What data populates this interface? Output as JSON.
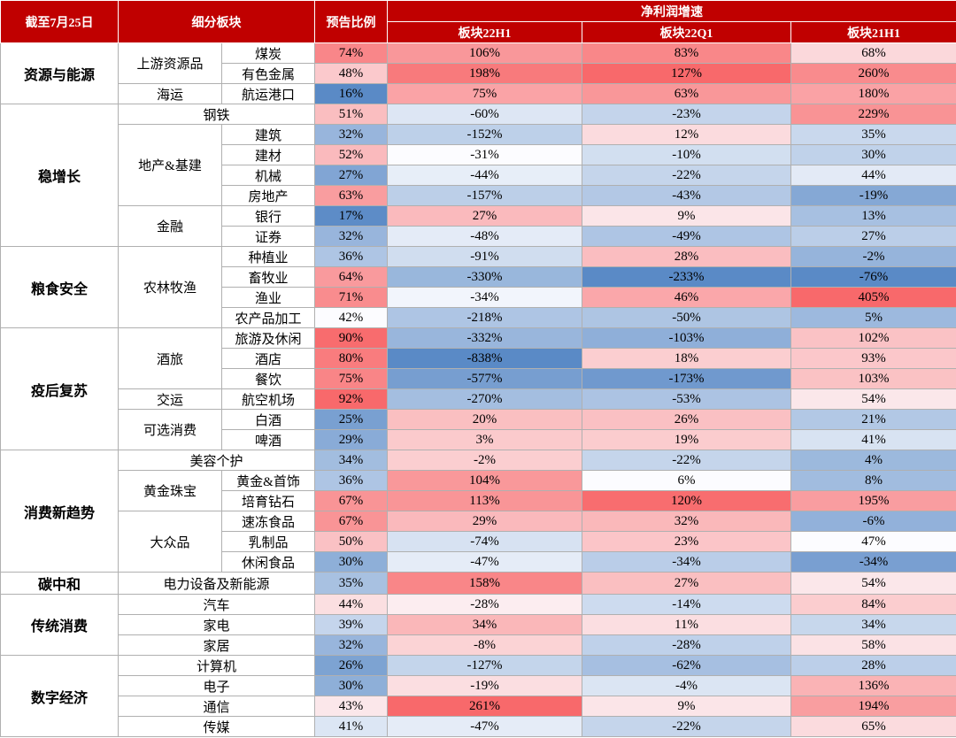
{
  "table": {
    "header": [
      "截至7月25日",
      "细分板块",
      "预告比例"
    ],
    "group_header": "净利润增速",
    "growth_columns": [
      "板块22H1",
      "板块22Q1",
      "板块21H1"
    ],
    "groups": [
      {
        "name": "资源与能源",
        "subgroups": [
          {
            "name": "上游资源品",
            "rows": [
              {
                "sector": "煤炭",
                "values": [
                  74,
                  106,
                  83,
                  68
                ],
                "value_labels": [
                  "74%",
                  "106%",
                  "83%",
                  "68%"
                ]
              },
              {
                "sector": "有色金属",
                "values": [
                  48,
                  198,
                  127,
                  260
                ],
                "value_labels": [
                  "48%",
                  "198%",
                  "127%",
                  "260%"
                ]
              }
            ]
          },
          {
            "name": "海运",
            "rows": [
              {
                "sector": "航运港口",
                "values": [
                  16,
                  75,
                  63,
                  180
                ],
                "value_labels": [
                  "16%",
                  "75%",
                  "63%",
                  "180%"
                ]
              }
            ]
          }
        ]
      },
      {
        "name": "稳增长",
        "subgroups": [
          {
            "name": "钢铁",
            "rows": [
              {
                "values": [
                  51,
                  -60,
                  -23,
                  229
                ],
                "value_labels": [
                  "51%",
                  "-60%",
                  "-23%",
                  "229%"
                ]
              }
            ]
          },
          {
            "name": "地产&基建",
            "rows": [
              {
                "sector": "建筑",
                "values": [
                  32,
                  -152,
                  12,
                  35
                ],
                "value_labels": [
                  "32%",
                  "-152%",
                  "12%",
                  "35%"
                ]
              },
              {
                "sector": "建材",
                "values": [
                  52,
                  -31,
                  -10,
                  30
                ],
                "value_labels": [
                  "52%",
                  "-31%",
                  "-10%",
                  "30%"
                ]
              },
              {
                "sector": "机械",
                "values": [
                  27,
                  -44,
                  -22,
                  44
                ],
                "value_labels": [
                  "27%",
                  "-44%",
                  "-22%",
                  "44%"
                ]
              },
              {
                "sector": "房地产",
                "values": [
                  63,
                  -157,
                  -43,
                  -19
                ],
                "value_labels": [
                  "63%",
                  "-157%",
                  "-43%",
                  "-19%"
                ]
              }
            ]
          },
          {
            "name": "金融",
            "rows": [
              {
                "sector": "银行",
                "values": [
                  17,
                  27,
                  9,
                  13
                ],
                "value_labels": [
                  "17%",
                  "27%",
                  "9%",
                  "13%"
                ]
              },
              {
                "sector": "证券",
                "values": [
                  32,
                  -48,
                  -49,
                  27
                ],
                "value_labels": [
                  "32%",
                  "-48%",
                  "-49%",
                  "27%"
                ]
              }
            ]
          }
        ]
      },
      {
        "name": "粮食安全",
        "subgroups": [
          {
            "name": "农林牧渔",
            "rows": [
              {
                "sector": "种植业",
                "values": [
                  36,
                  -91,
                  28,
                  -2
                ],
                "value_labels": [
                  "36%",
                  "-91%",
                  "28%",
                  "-2%"
                ]
              },
              {
                "sector": "畜牧业",
                "values": [
                  64,
                  -330,
                  -233,
                  -76
                ],
                "value_labels": [
                  "64%",
                  "-330%",
                  "-233%",
                  "-76%"
                ]
              },
              {
                "sector": "渔业",
                "values": [
                  71,
                  -34,
                  46,
                  405
                ],
                "value_labels": [
                  "71%",
                  "-34%",
                  "46%",
                  "405%"
                ]
              },
              {
                "sector": "农产品加工",
                "values": [
                  42,
                  -218,
                  -50,
                  5
                ],
                "value_labels": [
                  "42%",
                  "-218%",
                  "-50%",
                  "5%"
                ]
              }
            ]
          }
        ]
      },
      {
        "name": "疫后复苏",
        "subgroups": [
          {
            "name": "酒旅",
            "rows": [
              {
                "sector": "旅游及休闲",
                "values": [
                  90,
                  -332,
                  -103,
                  102
                ],
                "value_labels": [
                  "90%",
                  "-332%",
                  "-103%",
                  "102%"
                ]
              },
              {
                "sector": "酒店",
                "values": [
                  80,
                  -838,
                  18,
                  93
                ],
                "value_labels": [
                  "80%",
                  "-838%",
                  "18%",
                  "93%"
                ]
              },
              {
                "sector": "餐饮",
                "values": [
                  75,
                  -577,
                  -173,
                  103
                ],
                "value_labels": [
                  "75%",
                  "-577%",
                  "-173%",
                  "103%"
                ]
              }
            ]
          },
          {
            "name": "交运",
            "rows": [
              {
                "sector": "航空机场",
                "values": [
                  92,
                  -270,
                  -53,
                  54
                ],
                "value_labels": [
                  "92%",
                  "-270%",
                  "-53%",
                  "54%"
                ]
              }
            ]
          },
          {
            "name": "可选消费",
            "rows": [
              {
                "sector": "白酒",
                "values": [
                  25,
                  20,
                  26,
                  21
                ],
                "value_labels": [
                  "25%",
                  "20%",
                  "26%",
                  "21%"
                ]
              },
              {
                "sector": "啤酒",
                "values": [
                  29,
                  3,
                  19,
                  41
                ],
                "value_labels": [
                  "29%",
                  "3%",
                  "19%",
                  "41%"
                ]
              }
            ]
          }
        ]
      },
      {
        "name": "消费新趋势",
        "subgroups": [
          {
            "name": "美容个护",
            "rows": [
              {
                "values": [
                  34,
                  -2,
                  -22,
                  4
                ],
                "value_labels": [
                  "34%",
                  "-2%",
                  "-22%",
                  "4%"
                ]
              }
            ]
          },
          {
            "name": "黄金珠宝",
            "rows": [
              {
                "sector": "黄金&首饰",
                "values": [
                  36,
                  104,
                  6,
                  8
                ],
                "value_labels": [
                  "36%",
                  "104%",
                  "6%",
                  "8%"
                ]
              },
              {
                "sector": "培育钻石",
                "values": [
                  67,
                  113,
                  120,
                  195
                ],
                "value_labels": [
                  "67%",
                  "113%",
                  "120%",
                  "195%"
                ]
              }
            ]
          },
          {
            "name": "大众品",
            "rows": [
              {
                "sector": "速冻食品",
                "values": [
                  67,
                  29,
                  32,
                  -6
                ],
                "value_labels": [
                  "67%",
                  "29%",
                  "32%",
                  "-6%"
                ]
              },
              {
                "sector": "乳制品",
                "values": [
                  50,
                  -74,
                  23,
                  47
                ],
                "value_labels": [
                  "50%",
                  "-74%",
                  "23%",
                  "47%"
                ]
              },
              {
                "sector": "休闲食品",
                "values": [
                  30,
                  -47,
                  -34,
                  -34
                ],
                "value_labels": [
                  "30%",
                  "-47%",
                  "-34%",
                  "-34%"
                ]
              }
            ]
          }
        ]
      },
      {
        "name": "碳中和",
        "subgroups": [
          {
            "name": "电力设备及新能源",
            "rows": [
              {
                "values": [
                  35,
                  158,
                  27,
                  54
                ],
                "value_labels": [
                  "35%",
                  "158%",
                  "27%",
                  "54%"
                ]
              }
            ]
          }
        ]
      },
      {
        "name": "传统消费",
        "subgroups": [
          {
            "name": "汽车",
            "rows": [
              {
                "values": [
                  44,
                  -28,
                  -14,
                  84
                ],
                "value_labels": [
                  "44%",
                  "-28%",
                  "-14%",
                  "84%"
                ]
              }
            ]
          },
          {
            "name": "家电",
            "rows": [
              {
                "values": [
                  39,
                  34,
                  11,
                  34
                ],
                "value_labels": [
                  "39%",
                  "34%",
                  "11%",
                  "34%"
                ]
              }
            ]
          },
          {
            "name": "家居",
            "rows": [
              {
                "values": [
                  32,
                  -8,
                  -28,
                  58
                ],
                "value_labels": [
                  "32%",
                  "-8%",
                  "-28%",
                  "58%"
                ]
              }
            ]
          }
        ]
      },
      {
        "name": "数字经济",
        "subgroups": [
          {
            "name": "计算机",
            "rows": [
              {
                "values": [
                  26,
                  -127,
                  -62,
                  28
                ],
                "value_labels": [
                  "26%",
                  "-127%",
                  "-62%",
                  "28%"
                ]
              }
            ]
          },
          {
            "name": "电子",
            "rows": [
              {
                "values": [
                  30,
                  -19,
                  -4,
                  136
                ],
                "value_labels": [
                  "30%",
                  "-19%",
                  "-4%",
                  "136%"
                ]
              }
            ]
          },
          {
            "name": "通信",
            "rows": [
              {
                "values": [
                  43,
                  261,
                  9,
                  194
                ],
                "value_labels": [
                  "43%",
                  "261%",
                  "9%",
                  "194%"
                ]
              }
            ]
          },
          {
            "name": "传媒",
            "rows": [
              {
                "values": [
                  41,
                  -47,
                  -22,
                  65
                ],
                "value_labels": [
                  "41%",
                  "-47%",
                  "-22%",
                  "65%"
                ]
              }
            ]
          }
        ]
      }
    ]
  }
}
